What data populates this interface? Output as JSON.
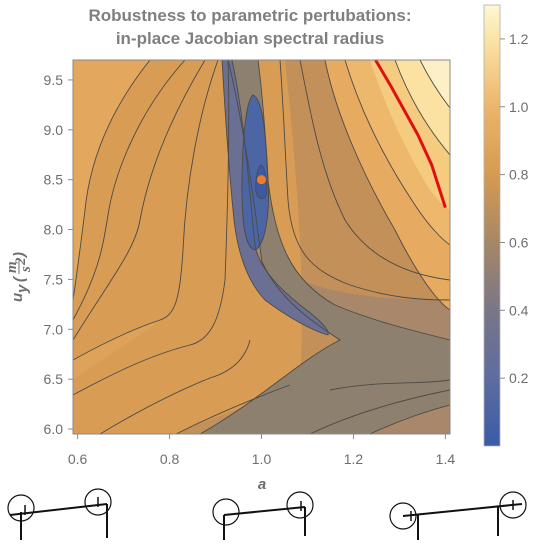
{
  "chart_data": {
    "type": "contour",
    "title_line1": "Robustness to parametric pertubations:",
    "title_line2": "in-place Jacobian spectral radius",
    "xlabel": "a",
    "ylabel": {
      "var": "u",
      "sub": "y",
      "num": "m",
      "den": "s",
      "den_exp": "2"
    },
    "x_ticks": [
      0.6,
      0.8,
      1.0,
      1.2,
      1.4
    ],
    "x_tick_labels": [
      "0.6",
      "0.8",
      "1.0",
      "1.2",
      "1.4"
    ],
    "y_ticks": [
      6.0,
      6.5,
      7.0,
      7.5,
      8.0,
      8.5,
      9.0,
      9.5
    ],
    "y_tick_labels": [
      "6.0",
      "6.5",
      "7.0",
      "7.5",
      "8.0",
      "8.5",
      "9.0",
      "9.5"
    ],
    "xlim": [
      0.59,
      1.41
    ],
    "ylim": [
      5.95,
      9.7
    ],
    "colorbar_ticks": [
      0.2,
      0.4,
      0.6,
      0.8,
      1.0,
      1.2
    ],
    "colorbar_tick_labels": [
      "0.2",
      "0.4",
      "0.6",
      "0.8",
      "1.0",
      "1.2"
    ],
    "colorbar_range": [
      0.0,
      1.3
    ],
    "contour_step": 0.1,
    "minimum_point": {
      "x": 1.0,
      "y": 8.5,
      "color": "#f07d2a"
    },
    "critical_contour": {
      "level": 1.0,
      "color": "#e01010",
      "points": [
        [
          1.248,
          9.7
        ],
        [
          1.28,
          9.45
        ],
        [
          1.31,
          9.2
        ],
        [
          1.34,
          8.95
        ],
        [
          1.37,
          8.65
        ],
        [
          1.4,
          8.22
        ]
      ]
    },
    "colors": {
      "low": "#3b5ca8",
      "mid_low": "#6d7298",
      "mid": "#8e8070",
      "mid_high": "#cc9654",
      "high": "#e9ae63",
      "top": "#fef6cf"
    }
  },
  "robot_diagrams": [
    {
      "name": "configuration-left"
    },
    {
      "name": "configuration-middle"
    },
    {
      "name": "configuration-right"
    }
  ]
}
